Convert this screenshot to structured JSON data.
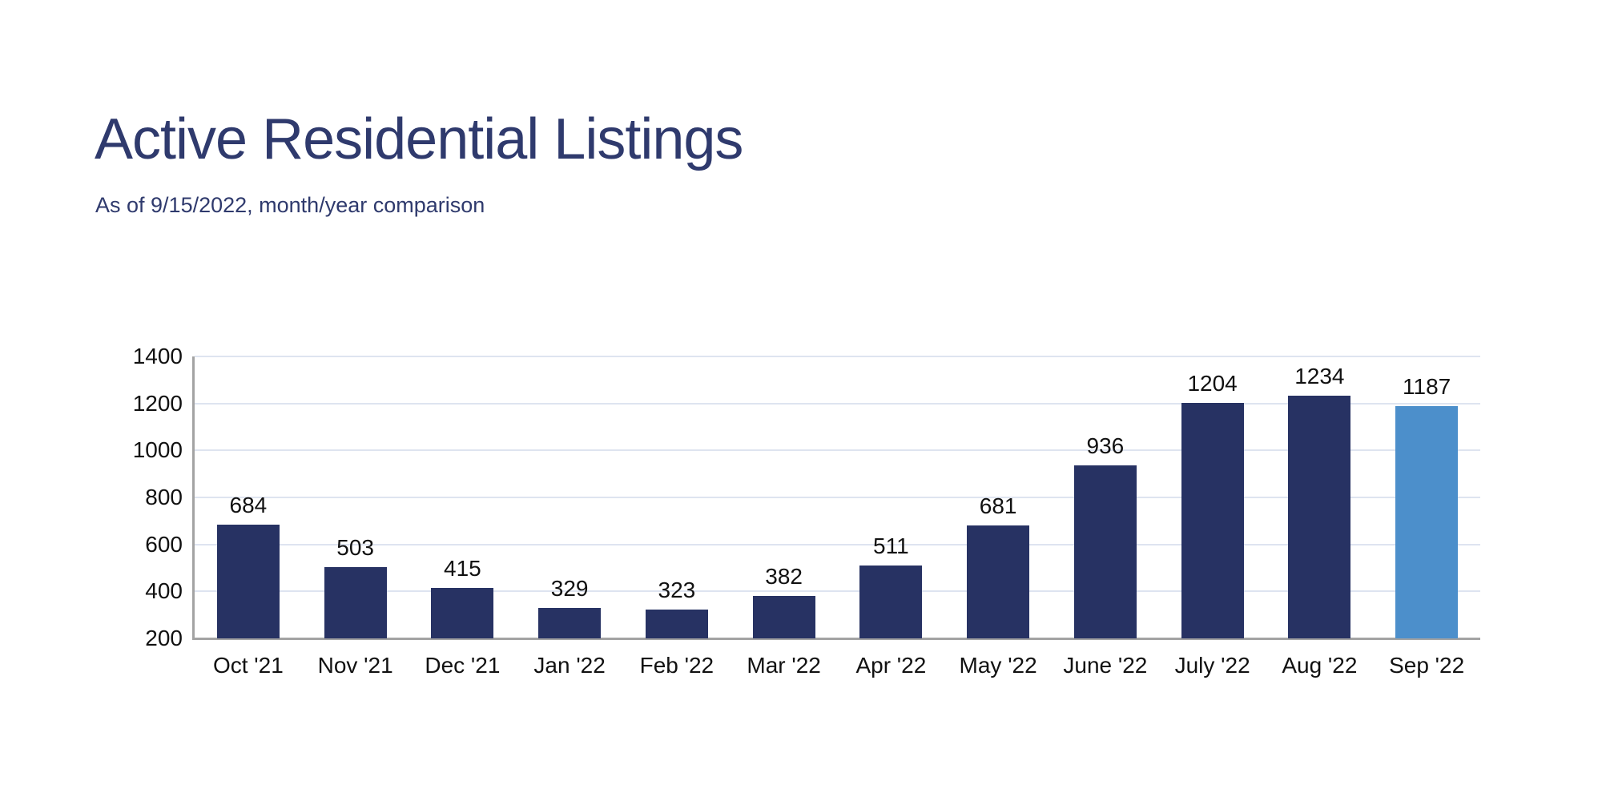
{
  "page": {
    "background": "#FFFFFF"
  },
  "header": {
    "title": "Active Residential Listings",
    "subtitle": "As of 9/15/2022, month/year comparison",
    "text_color": "#2F3A6D"
  },
  "chart_data": {
    "type": "bar",
    "title": "Active Residential Listings",
    "subtitle": "As of 9/15/2022, month/year comparison",
    "categories": [
      "Oct '21",
      "Nov '21",
      "Dec '21",
      "Jan '22",
      "Feb '22",
      "Mar '22",
      "Apr '22",
      "May '22",
      "June '22",
      "July '22",
      "Aug '22",
      "Sep '22"
    ],
    "values": [
      684,
      503,
      415,
      329,
      323,
      382,
      511,
      681,
      936,
      1204,
      1234,
      1187
    ],
    "value_labels": [
      "684",
      "503",
      "415",
      "329",
      "323",
      "382",
      "511",
      "681",
      "936",
      "1204",
      "1234",
      "1187"
    ],
    "xlabel": "",
    "ylabel": "",
    "ylim": [
      200,
      1400
    ],
    "yticks": [
      200,
      400,
      600,
      800,
      1000,
      1200,
      1400
    ],
    "grid": true,
    "legend_position": "none",
    "bar_color": "#273263",
    "highlight_index": 11,
    "highlight_color": "#4C8FCB",
    "gridline_color": "#DEE4F0",
    "axis_color": "#A3A3A3",
    "tick_label_color": "#111111",
    "value_label_color": "#111111"
  }
}
